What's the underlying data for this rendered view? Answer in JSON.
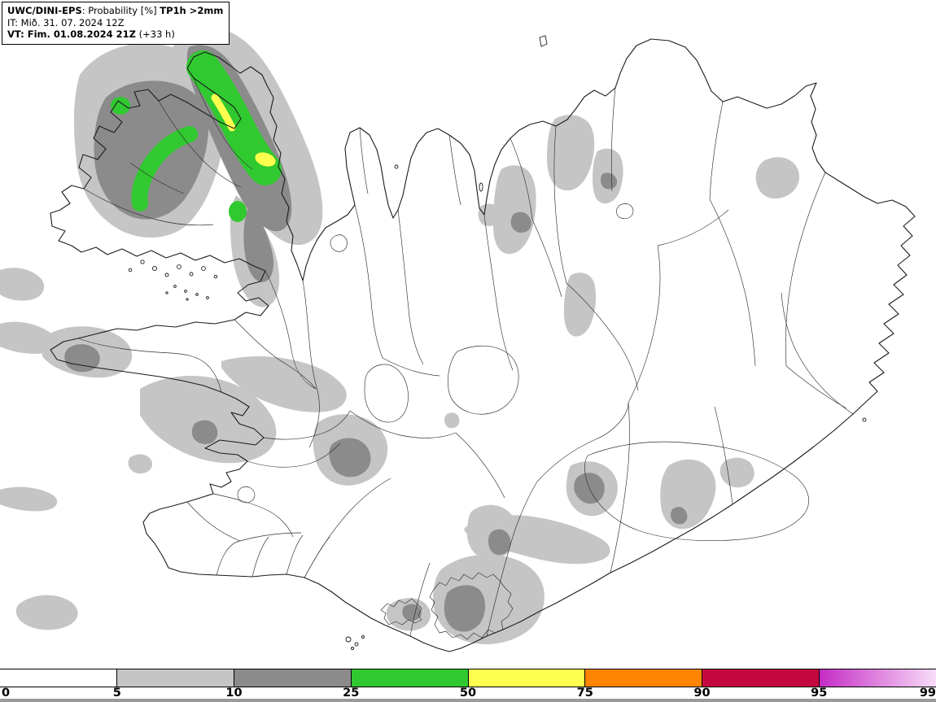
{
  "header": {
    "line1_model": "UWC/DINI-EPS",
    "line1_mid": ": Probability [%] ",
    "line1_param": "TP1h >2mm",
    "line2": "IT: Mið. 31. 07. 2024 12Z",
    "line3_bold": "VT: Fim. 01.08.2024 21Z",
    "line3_tail": " (+33 h)"
  },
  "colorbar": {
    "ticks": [
      "0",
      "5",
      "10",
      "25",
      "50",
      "75",
      "90",
      "95",
      "99"
    ],
    "segments": [
      {
        "from": "0",
        "to": "5",
        "color": "#ffffff"
      },
      {
        "from": "5",
        "to": "10",
        "color": "#c5c5c5"
      },
      {
        "from": "10",
        "to": "25",
        "color": "#8b8b8b"
      },
      {
        "from": "25",
        "to": "50",
        "color": "#30c930"
      },
      {
        "from": "50",
        "to": "75",
        "color": "#ffff4d"
      },
      {
        "from": "75",
        "to": "90",
        "color": "#ff8400"
      },
      {
        "from": "90",
        "to": "95",
        "color": "#c50740"
      },
      {
        "from": "95",
        "to": "99",
        "color": "#c52cc5",
        "color_end": "#f8dcf8"
      }
    ],
    "strip_color": "#9a9a9a"
  }
}
